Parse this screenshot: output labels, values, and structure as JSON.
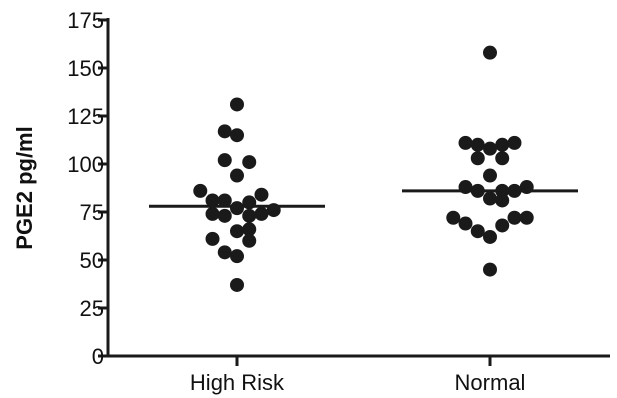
{
  "chart_data": {
    "type": "scatter",
    "subtype": "dot-plot-with-means",
    "title": "",
    "xlabel": "",
    "ylabel": "PGE2 pg/ml",
    "ylim": [
      0,
      175
    ],
    "yticks": [
      0,
      25,
      50,
      75,
      100,
      125,
      150,
      175
    ],
    "ytick_labels": [
      "0",
      "25",
      "50",
      "75",
      "100",
      "125",
      "150",
      "175"
    ],
    "categories": [
      "High Risk",
      "Normal"
    ],
    "grid": false,
    "legend": "none",
    "colors": {
      "points": "#1a1a1a",
      "mean_line": "#1a1a1a",
      "axis": "#1a1a1a"
    },
    "series": [
      {
        "category": "High Risk",
        "mean": 78,
        "points": [
          {
            "offset": 0.0,
            "y": 131
          },
          {
            "offset": -0.12,
            "y": 117
          },
          {
            "offset": 0.0,
            "y": 115
          },
          {
            "offset": -0.12,
            "y": 102
          },
          {
            "offset": 0.12,
            "y": 101
          },
          {
            "offset": 0.0,
            "y": 94
          },
          {
            "offset": -0.36,
            "y": 86
          },
          {
            "offset": -0.24,
            "y": 81
          },
          {
            "offset": -0.12,
            "y": 81
          },
          {
            "offset": 0.12,
            "y": 80
          },
          {
            "offset": 0.24,
            "y": 84
          },
          {
            "offset": -0.24,
            "y": 74
          },
          {
            "offset": -0.12,
            "y": 73
          },
          {
            "offset": 0.12,
            "y": 73
          },
          {
            "offset": 0.0,
            "y": 77
          },
          {
            "offset": 0.24,
            "y": 74
          },
          {
            "offset": 0.36,
            "y": 76
          },
          {
            "offset": 0.0,
            "y": 65
          },
          {
            "offset": 0.12,
            "y": 66
          },
          {
            "offset": -0.24,
            "y": 61
          },
          {
            "offset": 0.12,
            "y": 60
          },
          {
            "offset": -0.12,
            "y": 54
          },
          {
            "offset": 0.0,
            "y": 52
          },
          {
            "offset": 0.0,
            "y": 37
          }
        ]
      },
      {
        "category": "Normal",
        "mean": 86,
        "points": [
          {
            "offset": 0.0,
            "y": 158
          },
          {
            "offset": -0.24,
            "y": 111
          },
          {
            "offset": -0.12,
            "y": 110
          },
          {
            "offset": 0.12,
            "y": 110
          },
          {
            "offset": 0.24,
            "y": 111
          },
          {
            "offset": 0.0,
            "y": 108
          },
          {
            "offset": -0.12,
            "y": 103
          },
          {
            "offset": 0.12,
            "y": 103
          },
          {
            "offset": 0.0,
            "y": 94
          },
          {
            "offset": -0.24,
            "y": 88
          },
          {
            "offset": -0.12,
            "y": 86
          },
          {
            "offset": 0.12,
            "y": 86
          },
          {
            "offset": 0.24,
            "y": 86
          },
          {
            "offset": 0.36,
            "y": 88
          },
          {
            "offset": 0.0,
            "y": 82
          },
          {
            "offset": 0.12,
            "y": 81
          },
          {
            "offset": -0.36,
            "y": 72
          },
          {
            "offset": -0.24,
            "y": 69
          },
          {
            "offset": 0.24,
            "y": 72
          },
          {
            "offset": 0.36,
            "y": 72
          },
          {
            "offset": -0.12,
            "y": 65
          },
          {
            "offset": 0.0,
            "y": 62
          },
          {
            "offset": 0.12,
            "y": 68
          },
          {
            "offset": 0.0,
            "y": 45
          }
        ]
      }
    ]
  }
}
